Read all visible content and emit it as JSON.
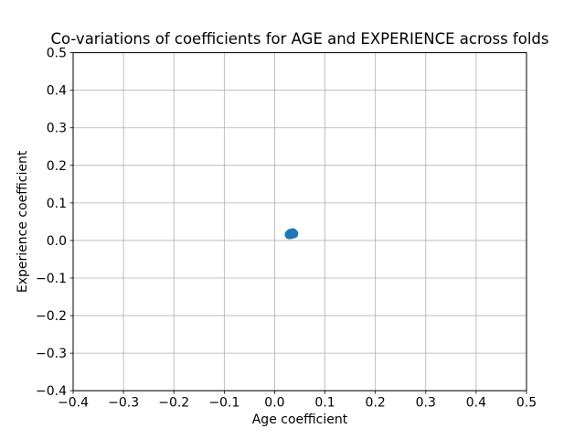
{
  "chart_data": {
    "type": "scatter",
    "title": "Co-variations of coefficients for AGE and EXPERIENCE across folds",
    "xlabel": "Age coefficient",
    "ylabel": "Experience coefficient",
    "xlim": [
      -0.4,
      0.5
    ],
    "ylim": [
      -0.4,
      0.5
    ],
    "xticks": [
      -0.4,
      -0.3,
      -0.2,
      -0.1,
      0.0,
      0.1,
      0.2,
      0.3,
      0.4,
      0.5
    ],
    "yticks": [
      -0.4,
      -0.3,
      -0.2,
      -0.1,
      0.0,
      0.1,
      0.2,
      0.3,
      0.4,
      0.5
    ],
    "xtick_labels": [
      "−0.4",
      "−0.3",
      "−0.2",
      "−0.1",
      "0.0",
      "0.1",
      "0.2",
      "0.3",
      "0.4",
      "0.5"
    ],
    "ytick_labels": [
      "−0.4",
      "−0.3",
      "−0.2",
      "−0.1",
      "0.0",
      "0.1",
      "0.2",
      "0.3",
      "0.4",
      "0.5"
    ],
    "grid": true,
    "legend_position": "none",
    "series": [
      {
        "name": "coefficients-per-fold",
        "marker": "circle",
        "marker_radius_px": 5,
        "color": "#1f77b4",
        "points": [
          [
            0.029,
            0.0155
          ],
          [
            0.031,
            0.016
          ],
          [
            0.0315,
            0.019
          ],
          [
            0.034,
            0.0165
          ],
          [
            0.0345,
            0.0185
          ],
          [
            0.036,
            0.0205
          ],
          [
            0.038,
            0.018
          ]
        ]
      }
    ],
    "colors": {
      "marker": "#1f77b4",
      "grid": "#b0b0b0",
      "axes": "#000000",
      "background": "#ffffff",
      "text": "#000000"
    }
  }
}
